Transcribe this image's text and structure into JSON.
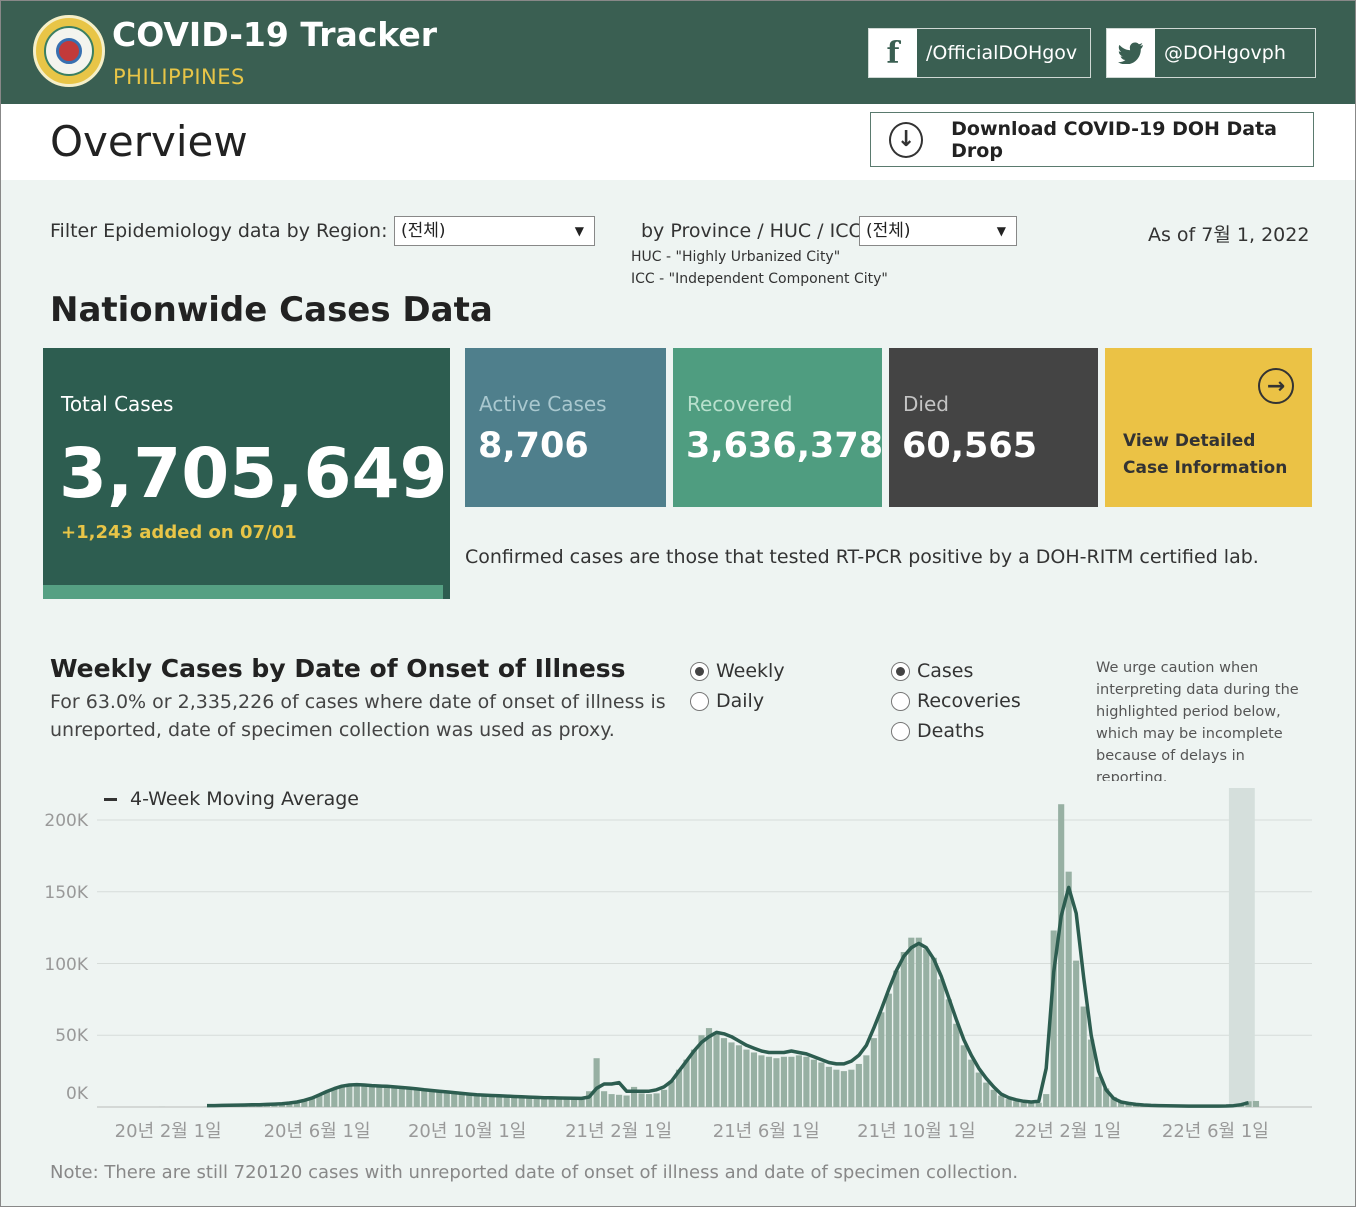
{
  "header": {
    "title": "COVID-19 Tracker",
    "subtitle": "PHILIPPINES",
    "facebook_label": "/OfficialDOHgov",
    "twitter_label": "@DOHgovph",
    "seal_text": "REPUBLIC OF THE PHILIPPINES DEPARTMENT OF HEALTH"
  },
  "overview": {
    "title": "Overview",
    "download_label": "Download COVID-19 DOH Data Drop"
  },
  "filters": {
    "region_label": "Filter Epidemiology data by Region:",
    "region_value": "(전체)",
    "province_label": "by Province / HUC / ICC:",
    "province_value": "(전체)",
    "huc_note": "HUC - \"Highly Urbanized City\"",
    "icc_note": "ICC - \"Independent Component City\"",
    "as_of": "As of 7월 1, 2022"
  },
  "nationwide": {
    "title": "Nationwide Cases Data",
    "total_label": "Total Cases",
    "total_value": "3,705,649",
    "added": "+1,243 added on 07/01",
    "active_label": "Active Cases",
    "active_value": "8,706",
    "recovered_label": "Recovered",
    "recovered_value": "3,636,378",
    "died_label": "Died",
    "died_value": "60,565",
    "details_label": "View Detailed Case Information",
    "confirmed_note": "Confirmed cases are those that tested RT-PCR positive by a DOH-RITM certified lab.",
    "colors": {
      "total": "#2d5d50",
      "active": "#4f7f8c",
      "recovered": "#4f9d80",
      "died": "#444444",
      "details": "#ebc245"
    }
  },
  "weekly": {
    "title": "Weekly Cases by Date of Onset of Illness",
    "description": "For 63.0% or 2,335,226 of cases where date of onset of illness is unreported, date of specimen collection was used as proxy.",
    "frequency_options": [
      "Weekly",
      "Daily"
    ],
    "frequency_selected": "Weekly",
    "metric_options": [
      "Cases",
      "Recoveries",
      "Deaths"
    ],
    "metric_selected": "Cases",
    "caution": "We urge caution when interpreting data during the highlighted period below, which may be incomplete because of delays in reporting.",
    "legend": "4-Week Moving Average",
    "note": "Note: There are still 720120 cases with unreported date of onset of illness and date of specimen collection."
  },
  "chart_data": {
    "type": "bar",
    "y_ticks": [
      "200K",
      "150K",
      "100K",
      "50K",
      "0K"
    ],
    "x_ticks": [
      "20년 2월 1일",
      "20년 6월 1일",
      "20년 10월 1일",
      "21년 2월 1일",
      "21년 6월 1일",
      "21년 10월 1일",
      "22년 2월 1일",
      "22년 6월 1일"
    ],
    "ylim": [
      0,
      210000
    ],
    "grid": true,
    "x_start": "2020-01-27",
    "x_end": "2022-07-04",
    "highlighted_period": [
      "2022-06-12",
      "2022-07-03"
    ],
    "bar_color": "#97b0a3",
    "line_color": "#2d5d50",
    "series": [
      {
        "name": "Weekly Cases",
        "kind": "bar",
        "values": [
          100,
          0,
          0,
          0,
          0,
          0,
          200,
          600,
          700,
          800,
          900,
          1000,
          1100,
          1300,
          1500,
          1700,
          2000,
          2500,
          3200,
          4500,
          6000,
          8000,
          11000,
          13000,
          15000,
          16000,
          16000,
          15500,
          15000,
          14500,
          15000,
          14500,
          14000,
          13500,
          13000,
          12000,
          11500,
          11000,
          10500,
          10000,
          9500,
          9000,
          8500,
          8500,
          8000,
          8000,
          7500,
          7500,
          7000,
          7000,
          6500,
          6500,
          6500,
          6000,
          6000,
          6000,
          6000,
          11000,
          34000,
          11000,
          9000,
          8500,
          8000,
          14000,
          9500,
          9000,
          9500,
          12000,
          18000,
          26000,
          33000,
          40000,
          50000,
          55000,
          52000,
          48000,
          45000,
          43000,
          40000,
          38000,
          36000,
          35000,
          34000,
          35000,
          35000,
          36000,
          35000,
          33000,
          31000,
          28000,
          26000,
          25000,
          26000,
          30000,
          36000,
          48000,
          66000,
          79000,
          95000,
          108000,
          118000,
          118000,
          110000,
          104000,
          89000,
          75000,
          58000,
          43000,
          33000,
          24000,
          17000,
          12000,
          8000,
          5500,
          4000,
          3000,
          2500,
          3000,
          9000,
          123000,
          211000,
          164000,
          102000,
          70000,
          47000,
          21000,
          13000,
          7000,
          4000,
          3000,
          2000,
          1500,
          1000,
          1000,
          800,
          700,
          600,
          500,
          500,
          500,
          500,
          500,
          600,
          800,
          1500,
          4000,
          4200
        ]
      },
      {
        "name": "4-Week Moving Average",
        "kind": "line",
        "values": [
          null,
          null,
          null,
          null,
          null,
          null,
          1000,
          1000,
          1100,
          1200,
          1300,
          1400,
          1500,
          1600,
          1800,
          2000,
          2300,
          2800,
          3500,
          4700,
          6200,
          8400,
          10800,
          12800,
          14500,
          15300,
          15600,
          15300,
          14900,
          14600,
          14400,
          14000,
          13600,
          13200,
          12600,
          12000,
          11500,
          11000,
          10500,
          10000,
          9500,
          9000,
          8600,
          8300,
          8000,
          7800,
          7600,
          7300,
          7100,
          6900,
          6700,
          6500,
          6400,
          6300,
          6200,
          6100,
          6000,
          7000,
          13000,
          16000,
          16000,
          17000,
          11000,
          11000,
          11000,
          11000,
          12000,
          14000,
          18000,
          25000,
          32000,
          39000,
          45000,
          49000,
          52000,
          51000,
          49000,
          46000,
          43000,
          41000,
          39000,
          38000,
          38000,
          38000,
          39000,
          38000,
          37000,
          35000,
          33000,
          31000,
          30000,
          30000,
          32000,
          36000,
          43000,
          55000,
          68000,
          82000,
          95000,
          105000,
          111000,
          114000,
          111000,
          103000,
          91000,
          76000,
          61000,
          47000,
          36000,
          27000,
          20000,
          14000,
          9000,
          6500,
          5000,
          4000,
          3500,
          4000,
          27000,
          94000,
          133000,
          153000,
          135000,
          90000,
          50000,
          25000,
          12000,
          6000,
          3500,
          2500,
          1800,
          1400,
          1100,
          1000,
          900,
          800,
          700,
          650,
          600,
          600,
          600,
          650,
          700,
          900,
          1600,
          3000,
          null
        ]
      }
    ]
  }
}
